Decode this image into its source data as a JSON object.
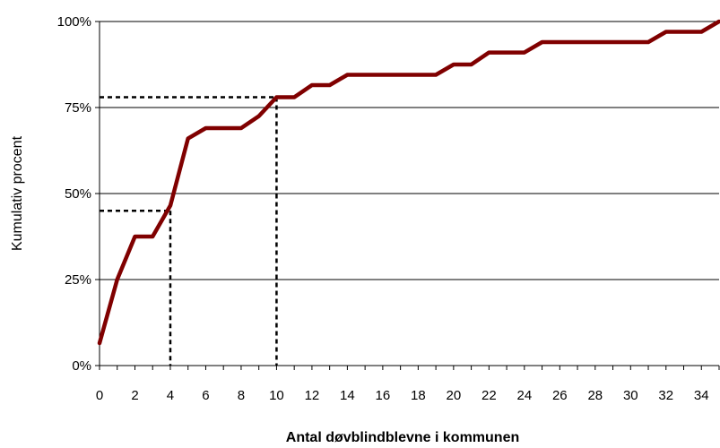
{
  "chart_data": {
    "type": "line",
    "title": "",
    "xlabel": "Antal døvblindblevne i kommunen",
    "ylabel": "Kumulativ procent",
    "xlim": [
      0,
      35
    ],
    "ylim": [
      0,
      100
    ],
    "x_ticks": [
      0,
      2,
      4,
      6,
      8,
      10,
      12,
      14,
      16,
      18,
      20,
      22,
      24,
      26,
      28,
      30,
      32,
      34
    ],
    "y_ticks": [
      0,
      25,
      50,
      75,
      100
    ],
    "y_tick_labels": [
      "0%",
      "25%",
      "50%",
      "75%",
      "100%"
    ],
    "grid": "horizontal",
    "series": [
      {
        "color": "#800000",
        "x": [
          0,
          1,
          2,
          3,
          4,
          5,
          6,
          7,
          8,
          9,
          10,
          11,
          12,
          13,
          14,
          15,
          16,
          17,
          18,
          19,
          20,
          21,
          22,
          23,
          24,
          25,
          26,
          27,
          28,
          29,
          30,
          31,
          32,
          33,
          34,
          35
        ],
        "values": [
          6.5,
          25,
          37.5,
          37.5,
          46.5,
          66,
          69,
          69,
          69,
          72.5,
          78,
          78,
          81.5,
          81.5,
          84.5,
          84.5,
          84.5,
          84.5,
          84.5,
          84.5,
          87.5,
          87.5,
          91,
          91,
          91,
          94,
          94,
          94,
          94,
          94,
          94,
          94,
          97,
          97,
          97,
          100
        ]
      }
    ],
    "reference_lines": [
      {
        "x": 4,
        "y": 45,
        "style": "dashed"
      },
      {
        "x": 10,
        "y": 78,
        "style": "dashed"
      }
    ]
  }
}
